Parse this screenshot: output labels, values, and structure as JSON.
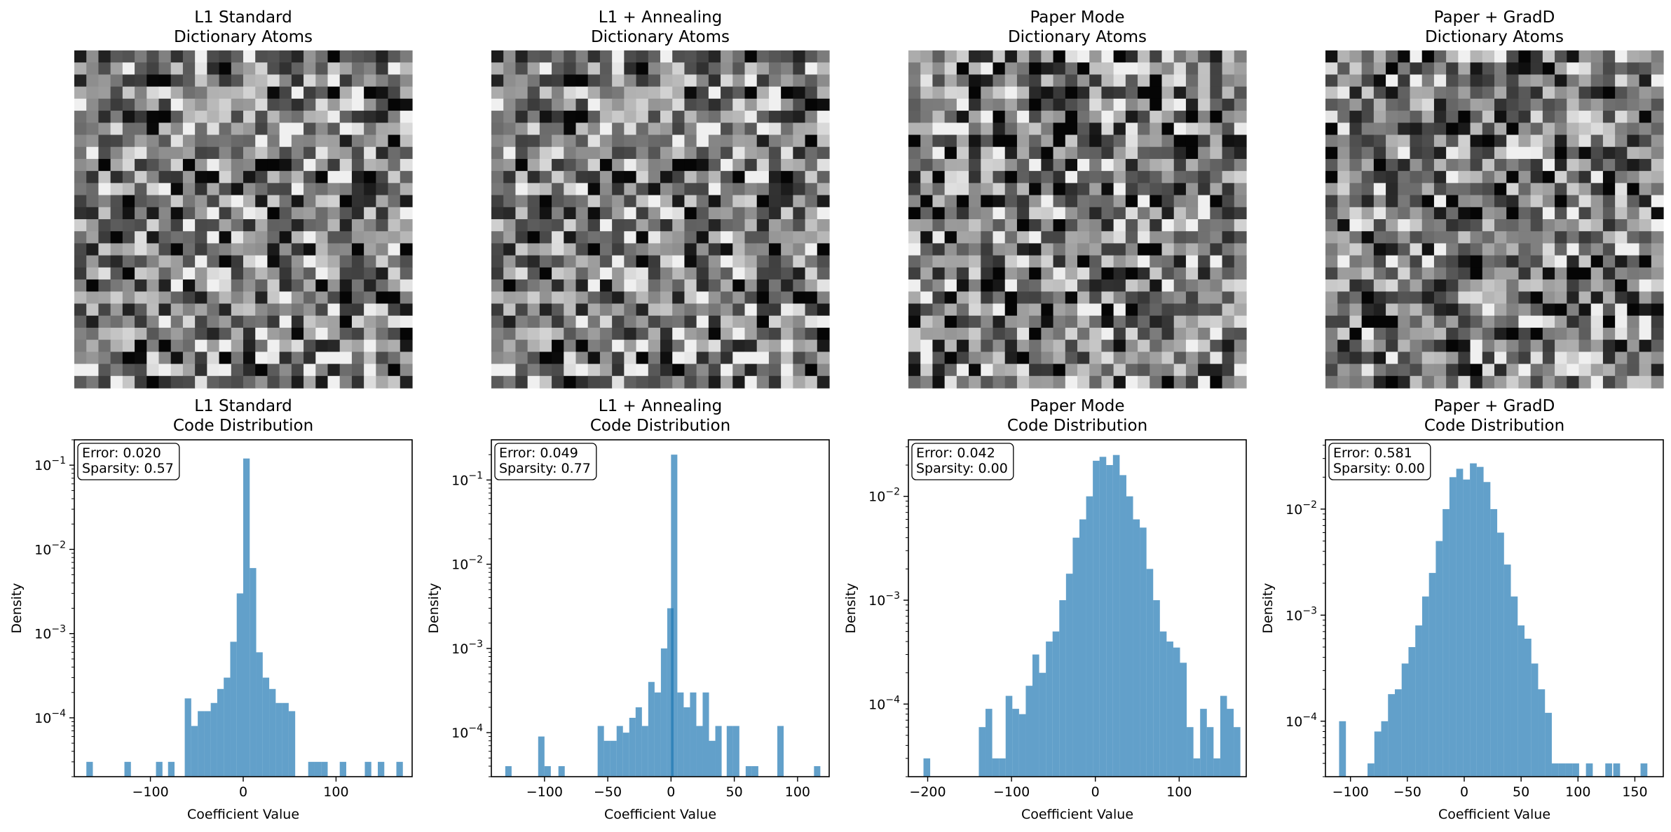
{
  "chart_data": [
    {
      "panel": "image",
      "type": "heatmap",
      "title": [
        "L1 Standard",
        "Dictionary Atoms"
      ],
      "grid_size": [
        28,
        28
      ],
      "colormap": "gray",
      "axes": "off",
      "seed": 11
    },
    {
      "panel": "image",
      "type": "heatmap",
      "title": [
        "L1 + Annealing",
        "Dictionary Atoms"
      ],
      "grid_size": [
        28,
        28
      ],
      "colormap": "gray",
      "axes": "off",
      "seed": 11
    },
    {
      "panel": "image",
      "type": "heatmap",
      "title": [
        "Paper Mode",
        "Dictionary Atoms"
      ],
      "grid_size": [
        28,
        28
      ],
      "colormap": "gray",
      "axes": "off",
      "seed": 29
    },
    {
      "panel": "image",
      "type": "heatmap",
      "title": [
        "Paper + GradD",
        "Dictionary Atoms"
      ],
      "grid_size": [
        28,
        28
      ],
      "colormap": "gray",
      "axes": "off",
      "seed": 47
    },
    {
      "panel": "hist",
      "type": "bar",
      "title": [
        "L1 Standard",
        "Code Distribution"
      ],
      "xlabel": "Coefficient Value",
      "ylabel": "Density",
      "yscale": "log",
      "xlim": [
        -182,
        182
      ],
      "ylim": [
        2e-05,
        0.2
      ],
      "xticks": [
        -100,
        0,
        100
      ],
      "xtick_labels": [
        "−100",
        "0",
        "100"
      ],
      "yticks": [
        0.0001,
        0.001,
        0.01,
        0.1
      ],
      "ytick_labels": [
        [
          "10",
          "−4"
        ],
        [
          "10",
          "−3"
        ],
        [
          "10",
          "−2"
        ],
        [
          "10",
          "−1"
        ]
      ],
      "annotation": [
        "Error: 0.020",
        "Sparsity: 0.57"
      ],
      "bins": [
        [
          -169,
          -162,
          3e-05
        ],
        [
          -128,
          -121,
          3e-05
        ],
        [
          -94,
          -87,
          3e-05
        ],
        [
          -81,
          -74,
          3e-05
        ],
        [
          -63,
          -56,
          0.00017
        ],
        [
          -56,
          -49,
          8e-05
        ],
        [
          -49,
          -42,
          0.00012
        ],
        [
          -42,
          -35,
          0.00012
        ],
        [
          -35,
          -28,
          0.00015
        ],
        [
          -28,
          -21,
          0.00022
        ],
        [
          -21,
          -14,
          0.0003
        ],
        [
          -14,
          -7,
          0.0008
        ],
        [
          -7,
          0,
          0.003
        ],
        [
          0,
          7,
          0.12
        ],
        [
          7,
          14,
          0.006
        ],
        [
          14,
          21,
          0.0006
        ],
        [
          21,
          28,
          0.0003
        ],
        [
          28,
          35,
          0.00022
        ],
        [
          35,
          42,
          0.00015
        ],
        [
          42,
          49,
          0.00015
        ],
        [
          49,
          56,
          0.00012
        ],
        [
          70,
          77,
          3e-05
        ],
        [
          77,
          84,
          3e-05
        ],
        [
          84,
          91,
          3e-05
        ],
        [
          104,
          111,
          3e-05
        ],
        [
          131,
          138,
          3e-05
        ],
        [
          145,
          152,
          3e-05
        ],
        [
          165,
          172,
          3e-05
        ]
      ]
    },
    {
      "panel": "hist",
      "type": "bar",
      "title": [
        "L1 + Annealing",
        "Code Distribution"
      ],
      "xlabel": "Coefficient Value",
      "ylabel": "Density",
      "yscale": "log",
      "xlim": [
        -142,
        125
      ],
      "ylim": [
        3e-05,
        0.3
      ],
      "xticks": [
        -100,
        -50,
        0,
        50,
        100
      ],
      "xtick_labels": [
        "−100",
        "−50",
        "0",
        "50",
        "100"
      ],
      "yticks": [
        0.0001,
        0.001,
        0.01,
        0.1
      ],
      "ytick_labels": [
        [
          "10",
          "−4"
        ],
        [
          "10",
          "−3"
        ],
        [
          "10",
          "−2"
        ],
        [
          "10",
          "−1"
        ]
      ],
      "annotation": [
        "Error: 0.049",
        "Sparsity: 0.77"
      ],
      "bins": [
        [
          -131,
          -126,
          4e-05
        ],
        [
          -105,
          -100,
          9e-05
        ],
        [
          -100,
          -95,
          4e-05
        ],
        [
          -89,
          -84,
          4e-05
        ],
        [
          -58,
          -53,
          0.00012
        ],
        [
          -53,
          -48,
          8e-05
        ],
        [
          -48,
          -43,
          8e-05
        ],
        [
          -43,
          -38,
          0.00012
        ],
        [
          -38,
          -33,
          0.0001
        ],
        [
          -33,
          -28,
          0.00015
        ],
        [
          -28,
          -23,
          0.0002
        ],
        [
          -23,
          -18,
          0.00012
        ],
        [
          -18,
          -13,
          0.0004
        ],
        [
          -13,
          -8,
          0.0003
        ],
        [
          -8,
          -3,
          0.001
        ],
        [
          -3,
          2,
          0.003
        ],
        [
          0,
          5,
          0.2
        ],
        [
          5,
          10,
          0.0003
        ],
        [
          10,
          15,
          0.0002
        ],
        [
          15,
          20,
          0.0003
        ],
        [
          20,
          25,
          0.00012
        ],
        [
          25,
          30,
          0.0003
        ],
        [
          30,
          35,
          8e-05
        ],
        [
          35,
          40,
          0.00012
        ],
        [
          44,
          49,
          0.00012
        ],
        [
          49,
          54,
          0.00012
        ],
        [
          59,
          64,
          4e-05
        ],
        [
          64,
          69,
          4e-05
        ],
        [
          84,
          89,
          0.00012
        ],
        [
          113,
          118,
          4e-05
        ]
      ]
    },
    {
      "panel": "hist",
      "type": "bar",
      "title": [
        "Paper Mode",
        "Code Distribution"
      ],
      "xlabel": "Coefficient Value",
      "ylabel": "Density",
      "yscale": "log",
      "xlim": [
        -223,
        180
      ],
      "ylim": [
        2e-05,
        0.035
      ],
      "xticks": [
        -200,
        -100,
        0,
        100
      ],
      "xtick_labels": [
        "−200",
        "−100",
        "0",
        "100"
      ],
      "yticks": [
        0.0001,
        0.001,
        0.01
      ],
      "ytick_labels": [
        [
          "10",
          "−4"
        ],
        [
          "10",
          "−3"
        ],
        [
          "10",
          "−2"
        ]
      ],
      "annotation": [
        "Error: 0.042",
        "Sparsity: 0.00"
      ],
      "bins": [
        [
          -205,
          -197,
          3e-05
        ],
        [
          -139,
          -131,
          6e-05
        ],
        [
          -131,
          -123,
          9e-05
        ],
        [
          -123,
          -115,
          3e-05
        ],
        [
          -115,
          -107,
          3e-05
        ],
        [
          -107,
          -99,
          0.00012
        ],
        [
          -99,
          -91,
          9e-05
        ],
        [
          -91,
          -83,
          8e-05
        ],
        [
          -83,
          -75,
          0.00015
        ],
        [
          -75,
          -67,
          0.0003
        ],
        [
          -67,
          -59,
          0.0002
        ],
        [
          -59,
          -51,
          0.0004
        ],
        [
          -51,
          -43,
          0.0005
        ],
        [
          -43,
          -35,
          0.001
        ],
        [
          -35,
          -27,
          0.0018
        ],
        [
          -27,
          -19,
          0.004
        ],
        [
          -19,
          -11,
          0.006
        ],
        [
          -11,
          -3,
          0.01
        ],
        [
          -3,
          5,
          0.022
        ],
        [
          5,
          13,
          0.024
        ],
        [
          13,
          21,
          0.02
        ],
        [
          21,
          29,
          0.025
        ],
        [
          29,
          37,
          0.016
        ],
        [
          37,
          45,
          0.01
        ],
        [
          45,
          53,
          0.006
        ],
        [
          53,
          61,
          0.005
        ],
        [
          61,
          69,
          0.002
        ],
        [
          69,
          77,
          0.001
        ],
        [
          77,
          85,
          0.0005
        ],
        [
          85,
          93,
          0.0004
        ],
        [
          93,
          101,
          0.00035
        ],
        [
          101,
          109,
          0.00025
        ],
        [
          109,
          117,
          6e-05
        ],
        [
          117,
          125,
          3e-05
        ],
        [
          125,
          133,
          9e-05
        ],
        [
          133,
          141,
          6e-05
        ],
        [
          141,
          149,
          3e-05
        ],
        [
          149,
          157,
          0.00012
        ],
        [
          157,
          165,
          9e-05
        ],
        [
          165,
          173,
          6e-05
        ]
      ]
    },
    {
      "panel": "hist",
      "type": "bar",
      "title": [
        "Paper + GradD",
        "Code Distribution"
      ],
      "xlabel": "Coefficient Value",
      "ylabel": "Density",
      "yscale": "log",
      "xlim": [
        -122,
        175
      ],
      "ylim": [
        3e-05,
        0.045
      ],
      "xticks": [
        -100,
        -50,
        0,
        50,
        100,
        150
      ],
      "xtick_labels": [
        "−100",
        "−50",
        "0",
        "50",
        "100",
        "150"
      ],
      "yticks": [
        0.0001,
        0.001,
        0.01
      ],
      "ytick_labels": [
        [
          "10",
          "−4"
        ],
        [
          "10",
          "−3"
        ],
        [
          "10",
          "−2"
        ]
      ],
      "annotation": [
        "Error: 0.581",
        "Sparsity: 0.00"
      ],
      "bins": [
        [
          -110,
          -104,
          0.0001
        ],
        [
          -85,
          -79,
          4e-05
        ],
        [
          -79,
          -73,
          8e-05
        ],
        [
          -73,
          -67,
          0.0001
        ],
        [
          -67,
          -61,
          0.00018
        ],
        [
          -61,
          -55,
          0.0002
        ],
        [
          -55,
          -49,
          0.00035
        ],
        [
          -49,
          -43,
          0.0005
        ],
        [
          -43,
          -37,
          0.0008
        ],
        [
          -37,
          -31,
          0.0015
        ],
        [
          -31,
          -25,
          0.0025
        ],
        [
          -25,
          -19,
          0.005
        ],
        [
          -19,
          -13,
          0.01
        ],
        [
          -13,
          -7,
          0.02
        ],
        [
          -7,
          -1,
          0.024
        ],
        [
          -1,
          5,
          0.019
        ],
        [
          5,
          11,
          0.027
        ],
        [
          11,
          17,
          0.025
        ],
        [
          17,
          23,
          0.018
        ],
        [
          23,
          29,
          0.01
        ],
        [
          29,
          35,
          0.006
        ],
        [
          35,
          41,
          0.003
        ],
        [
          41,
          47,
          0.0015
        ],
        [
          47,
          53,
          0.0008
        ],
        [
          53,
          59,
          0.0006
        ],
        [
          59,
          65,
          0.00035
        ],
        [
          65,
          71,
          0.0002
        ],
        [
          71,
          77,
          0.00012
        ],
        [
          77,
          83,
          4e-05
        ],
        [
          83,
          89,
          4e-05
        ],
        [
          89,
          95,
          4e-05
        ],
        [
          95,
          101,
          4e-05
        ],
        [
          107,
          113,
          4e-05
        ],
        [
          124,
          130,
          4e-05
        ],
        [
          131,
          137,
          4e-05
        ],
        [
          155,
          161,
          4e-05
        ]
      ]
    }
  ]
}
